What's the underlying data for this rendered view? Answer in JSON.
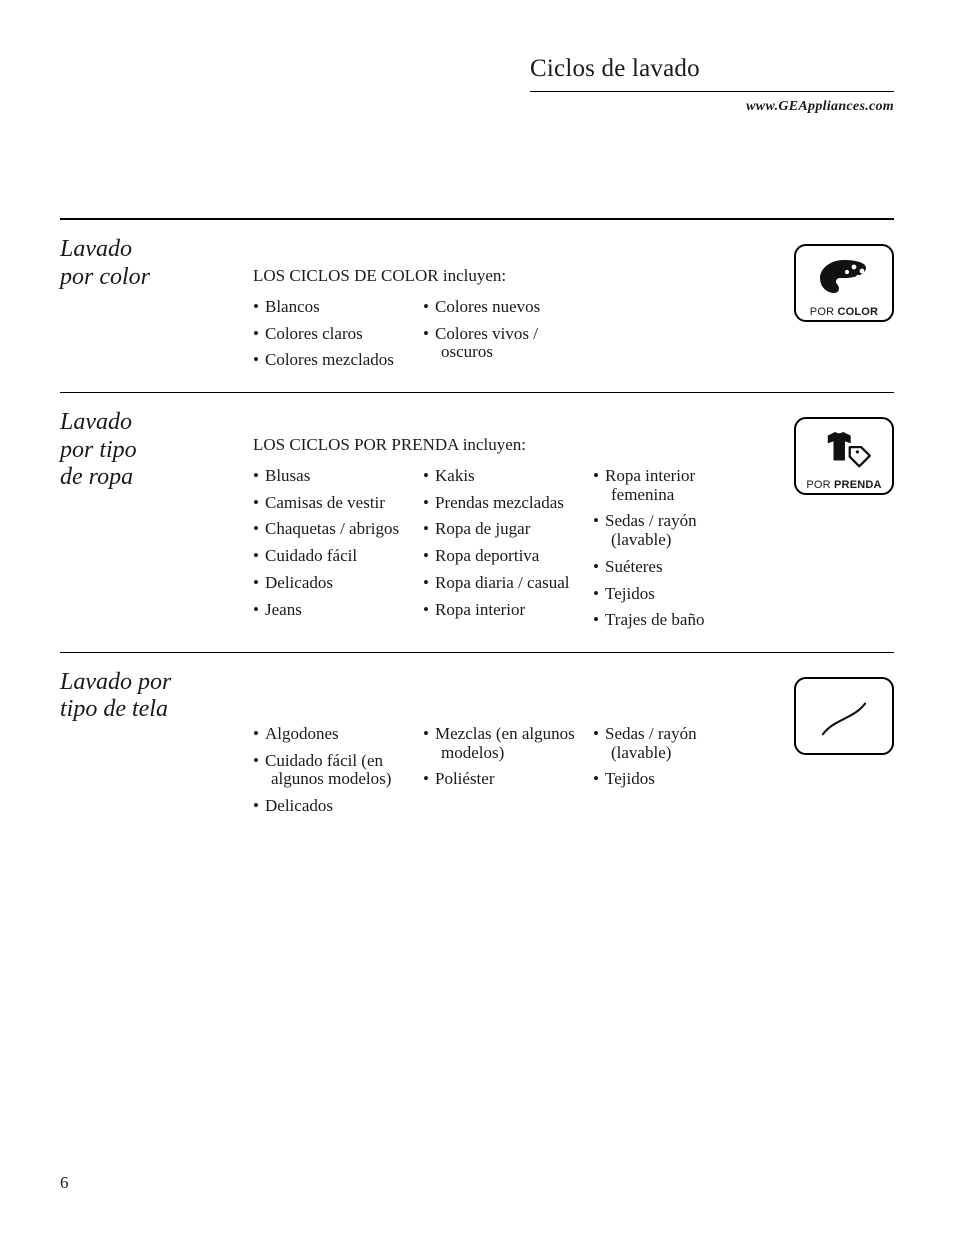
{
  "colors": {
    "text": "#1a1a1a",
    "background": "#ffffff",
    "rule": "#000000"
  },
  "typography": {
    "body_family": "Times New Roman, Times, serif",
    "body_size_pt": 12,
    "heading_family": "Times New Roman, Times, serif",
    "heading_italic": true,
    "heading_size_pt": 18,
    "icon_caption_family": "Helvetica, Arial, sans-serif"
  },
  "header": {
    "title": "Ciclos de lavado",
    "website": "www.GEAppliances.com"
  },
  "page_number": "6",
  "sections": [
    {
      "label_lines": [
        "Lavado",
        "por color"
      ],
      "intro": "LOS CICLOS DE COLOR incluyen:",
      "icon": {
        "kind": "palette",
        "caption_por": "POR",
        "caption_word": "COLOR"
      },
      "columns": [
        [
          "Blancos",
          "Colores claros",
          "Colores mezclados"
        ],
        [
          "Colores nuevos",
          "Colores vivos /\noscuros"
        ]
      ]
    },
    {
      "label_lines": [
        "Lavado",
        "por tipo",
        "de ropa"
      ],
      "intro": "LOS CICLOS POR PRENDA incluyen:",
      "icon": {
        "kind": "prenda",
        "caption_por": "POR",
        "caption_word": "PRENDA"
      },
      "columns": [
        [
          "Blusas",
          "Camisas de vestir",
          "Chaquetas / abrigos",
          "Cuidado fácil",
          "Delicados",
          "Jeans"
        ],
        [
          "Kakis",
          "Prendas mezcladas",
          "Ropa de jugar",
          "Ropa deportiva",
          "Ropa diaria / casual",
          "Ropa interior"
        ],
        [
          "Ropa interior\nfemenina",
          "Sedas / rayón\n(lavable)",
          "Suéteres",
          "Tejidos",
          "Trajes de baño"
        ]
      ]
    },
    {
      "label_lines": [
        "Lavado por",
        "tipo de tela"
      ],
      "intro": "",
      "icon": {
        "kind": "fabric",
        "caption_por": "",
        "caption_word": ""
      },
      "columns": [
        [
          "Algodones",
          "Cuidado fácil (en\nalgunos modelos)",
          "Delicados"
        ],
        [
          "Mezclas (en algunos\nmodelos)",
          "Poliéster"
        ],
        [
          "Sedas / rayón\n(lavable)",
          "Tejidos"
        ]
      ]
    }
  ]
}
